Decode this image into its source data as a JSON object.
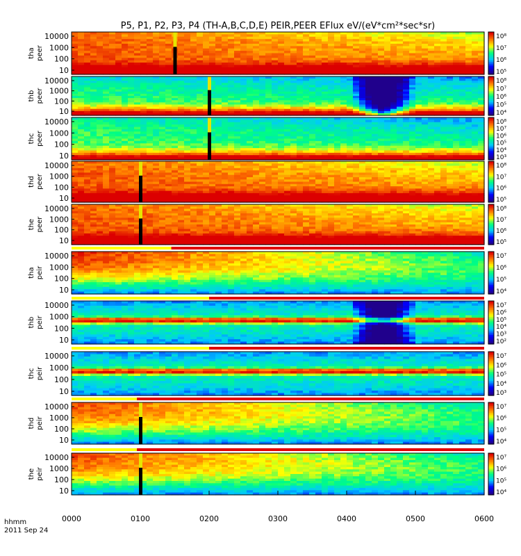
{
  "chart_data": {
    "type": "heatmap",
    "title": "P5, P1, P2, P3, P4 (TH-A,B,C,D,E) PEIR,PEER EFlux eV/(eV*cm²*sec*sr)",
    "x_ticks": [
      "0000",
      "0100",
      "0200",
      "0300",
      "0400",
      "0500",
      "0600"
    ],
    "x_label": "hhmm",
    "x_sublabel": "2011 Sep 24",
    "x_range_hours": [
      0,
      6
    ],
    "y_scale": "log",
    "colormap": [
      "#20008c",
      "#0000ff",
      "#00c8ff",
      "#00ff80",
      "#ffff00",
      "#ff7800",
      "#dc0000"
    ],
    "panels": [
      {
        "label1": "tha",
        "label2": "peer",
        "yticks": [
          "10000",
          "1000",
          "100",
          "10"
        ],
        "cbar": [
          "10⁸",
          "10⁷",
          "10⁶",
          "10⁵"
        ],
        "base": 0.55,
        "low_band": 0.97,
        "high_decay": 0.3,
        "spike_x": 1.5,
        "notch": false,
        "line_band": false
      },
      {
        "label1": "thb",
        "label2": "peer",
        "yticks": [
          "10000",
          "1000",
          "100",
          "10"
        ],
        "cbar": [
          "10⁸",
          "10⁷",
          "10⁶",
          "10⁵",
          "10⁴"
        ],
        "base": 0.25,
        "low_band": 1.0,
        "high_decay": 0.15,
        "spike_x": 2.0,
        "notch": true,
        "line_band": false
      },
      {
        "label1": "thc",
        "label2": "peer",
        "yticks": [
          "10000",
          "1000",
          "100",
          "10"
        ],
        "cbar": [
          "10⁸",
          "10⁷",
          "10⁶",
          "10⁵",
          "10⁴",
          "10³"
        ],
        "base": 0.25,
        "low_band": 1.0,
        "high_decay": 0.2,
        "spike_x": 2.0,
        "notch": false,
        "line_band": false
      },
      {
        "label1": "thd",
        "label2": "peer",
        "yticks": [
          "10000",
          "1000",
          "100",
          "10"
        ],
        "cbar": [
          "10⁸",
          "10⁷",
          "10⁶",
          "10⁵"
        ],
        "base": 0.55,
        "low_band": 0.97,
        "high_decay": 0.3,
        "spike_x": 1.0,
        "notch": false,
        "line_band": false
      },
      {
        "label1": "the",
        "label2": "peer",
        "yticks": [
          "10000",
          "1000",
          "100",
          "10"
        ],
        "cbar": [
          "10⁸",
          "10⁷",
          "10⁶",
          "10⁵"
        ],
        "base": 0.55,
        "low_band": 0.97,
        "high_decay": 0.3,
        "spike_x": 1.0,
        "notch": false,
        "line_band": false
      },
      {
        "label1": "tha",
        "label2": "peir",
        "yticks": [
          "10000",
          "1000",
          "100",
          "10"
        ],
        "cbar": [
          "10⁷",
          "10⁶",
          "10⁵",
          "10⁴"
        ],
        "base": 0.3,
        "low_band": 0.0,
        "high_decay": 0.65,
        "spike_x": null,
        "notch": false,
        "line_band": false,
        "flag_yellow_end": 1.45
      },
      {
        "label1": "thb",
        "label2": "peir",
        "yticks": [
          "10000",
          "1000",
          "100",
          "10"
        ],
        "cbar": [
          "10⁷",
          "10⁶",
          "10⁵",
          "10⁴",
          "10³",
          "10²"
        ],
        "base": 0.3,
        "low_band": 0.0,
        "high_decay": 0.0,
        "spike_x": null,
        "notch": true,
        "line_band": true,
        "flag_yellow_end": 2.0
      },
      {
        "label1": "thc",
        "label2": "peir",
        "yticks": [
          "10000",
          "1000",
          "100",
          "10"
        ],
        "cbar": [
          "10⁷",
          "10⁶",
          "10⁵",
          "10⁴",
          "10³"
        ],
        "base": 0.3,
        "low_band": 0.0,
        "high_decay": 0.0,
        "spike_x": null,
        "notch": false,
        "line_band": true,
        "flag_yellow_end": 2.0
      },
      {
        "label1": "thd",
        "label2": "peir",
        "yticks": [
          "10000",
          "1000",
          "100",
          "10"
        ],
        "cbar": [
          "10⁷",
          "10⁶",
          "10⁵",
          "10⁴"
        ],
        "base": 0.3,
        "low_band": 0.0,
        "high_decay": 0.6,
        "spike_x": 1.0,
        "notch": false,
        "line_band": false,
        "flag_yellow_end": 0.95
      },
      {
        "label1": "the",
        "label2": "peir",
        "yticks": [
          "10000",
          "1000",
          "100",
          "10"
        ],
        "cbar": [
          "10⁷",
          "10⁶",
          "10⁵",
          "10⁴"
        ],
        "base": 0.3,
        "low_band": 0.0,
        "high_decay": 0.6,
        "spike_x": 1.0,
        "notch": false,
        "line_band": false,
        "flag_yellow_end": 0.95
      }
    ]
  }
}
